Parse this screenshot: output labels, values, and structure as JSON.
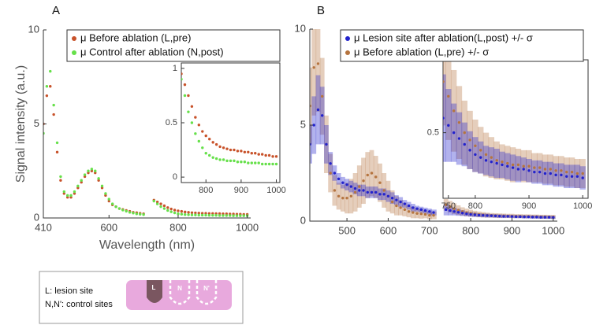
{
  "chart_data": [
    {
      "type": "scatter",
      "label": "A",
      "xlabel": "Wavelength (nm)",
      "ylabel": "Signal intensity (a.u.)",
      "xlim": [
        410,
        1010
      ],
      "ylim": [
        0,
        10
      ],
      "xticks": [
        410,
        600,
        800,
        1000
      ],
      "yticks": [
        0,
        5,
        10
      ],
      "x": [
        410,
        420,
        430,
        440,
        450,
        460,
        470,
        480,
        490,
        500,
        510,
        520,
        530,
        540,
        550,
        560,
        570,
        580,
        590,
        600,
        610,
        620,
        630,
        640,
        650,
        660,
        670,
        680,
        690,
        700,
        730,
        740,
        750,
        760,
        770,
        780,
        790,
        800,
        810,
        820,
        830,
        840,
        850,
        860,
        870,
        880,
        890,
        900,
        910,
        920,
        930,
        940,
        950,
        960,
        970,
        980,
        990,
        1000
      ],
      "series": [
        {
          "name": "μ Before ablation (L,pre)",
          "color": "#c8522a",
          "values": [
            5.0,
            6.5,
            7.0,
            5.5,
            3.5,
            2.0,
            1.3,
            1.1,
            1.1,
            1.3,
            1.6,
            1.9,
            2.2,
            2.4,
            2.5,
            2.4,
            2.0,
            1.6,
            1.2,
            0.9,
            0.7,
            0.6,
            0.5,
            0.45,
            0.4,
            0.35,
            0.3,
            0.28,
            0.25,
            0.22,
            0.95,
            0.85,
            0.75,
            0.65,
            0.55,
            0.48,
            0.42,
            0.38,
            0.35,
            0.32,
            0.3,
            0.28,
            0.27,
            0.26,
            0.25,
            0.25,
            0.24,
            0.24,
            0.23,
            0.23,
            0.22,
            0.22,
            0.21,
            0.21,
            0.2,
            0.2,
            0.19,
            0.19
          ]
        },
        {
          "name": "μ Control after ablation (N,post)",
          "color": "#66e04a",
          "values": [
            4.5,
            7.0,
            7.8,
            6.0,
            4.0,
            2.2,
            1.4,
            1.2,
            1.2,
            1.4,
            1.7,
            2.0,
            2.3,
            2.5,
            2.6,
            2.5,
            2.1,
            1.7,
            1.3,
            1.0,
            0.75,
            0.6,
            0.5,
            0.42,
            0.36,
            0.3,
            0.26,
            0.22,
            0.2,
            0.18,
            0.9,
            0.75,
            0.6,
            0.5,
            0.4,
            0.33,
            0.27,
            0.22,
            0.2,
            0.18,
            0.17,
            0.16,
            0.16,
            0.15,
            0.15,
            0.15,
            0.14,
            0.14,
            0.14,
            0.13,
            0.13,
            0.13,
            0.13,
            0.12,
            0.12,
            0.12,
            0.12,
            0.12
          ]
        }
      ],
      "inset": {
        "xlim": [
          730,
          1010
        ],
        "ylim": [
          -0.05,
          1.05
        ],
        "xticks": [
          800,
          900,
          1000
        ],
        "yticks": [
          0,
          0.5,
          1
        ]
      }
    },
    {
      "type": "scatter",
      "label": "B",
      "xlim": [
        410,
        1010
      ],
      "ylim": [
        0,
        10
      ],
      "xticks": [
        500,
        600,
        700,
        800,
        900,
        1000
      ],
      "yticks": [
        0,
        5,
        10
      ],
      "x": [
        410,
        420,
        430,
        440,
        450,
        460,
        470,
        480,
        490,
        500,
        510,
        520,
        530,
        540,
        550,
        560,
        570,
        580,
        590,
        600,
        610,
        620,
        630,
        640,
        650,
        660,
        670,
        680,
        690,
        700,
        710,
        740,
        750,
        760,
        770,
        780,
        790,
        800,
        810,
        820,
        830,
        840,
        850,
        860,
        870,
        880,
        890,
        900,
        910,
        920,
        930,
        940,
        950,
        960,
        970,
        980,
        990,
        1000
      ],
      "series": [
        {
          "name": "μ Before ablation (L,pre) +/- σ",
          "color": "#b5743f",
          "values": [
            6.0,
            8.0,
            8.2,
            6.5,
            4.0,
            2.5,
            1.6,
            1.3,
            1.2,
            1.2,
            1.3,
            1.5,
            1.8,
            2.1,
            2.4,
            2.5,
            2.3,
            2.0,
            1.6,
            1.3,
            1.0,
            0.8,
            0.7,
            0.6,
            0.5,
            0.45,
            0.4,
            0.38,
            0.35,
            0.3,
            0.3,
            0.85,
            0.75,
            0.65,
            0.57,
            0.5,
            0.45,
            0.41,
            0.38,
            0.35,
            0.33,
            0.31,
            0.3,
            0.29,
            0.28,
            0.28,
            0.27,
            0.27,
            0.26,
            0.26,
            0.25,
            0.25,
            0.24,
            0.24,
            0.23,
            0.23,
            0.22,
            0.22
          ],
          "errors": [
            2.0,
            2.5,
            2.5,
            2.0,
            1.5,
            1.0,
            0.8,
            0.7,
            0.7,
            0.8,
            0.9,
            1.0,
            1.1,
            1.2,
            1.2,
            1.2,
            1.1,
            1.0,
            0.9,
            0.8,
            0.6,
            0.5,
            0.4,
            0.35,
            0.3,
            0.3,
            0.25,
            0.25,
            0.2,
            0.2,
            0.2,
            0.3,
            0.3,
            0.28,
            0.25,
            0.22,
            0.2,
            0.18,
            0.16,
            0.15,
            0.14,
            0.13,
            0.12,
            0.12,
            0.12,
            0.11,
            0.11,
            0.11,
            0.1,
            0.1,
            0.1,
            0.1,
            0.1,
            0.1,
            0.1,
            0.1,
            0.1,
            0.1
          ]
        },
        {
          "name": "μ Lesion site after ablation(L,post) +/- σ",
          "color": "#2222cc",
          "values": [
            4.0,
            5.0,
            5.8,
            5.5,
            4.0,
            3.0,
            2.5,
            2.2,
            2.0,
            1.9,
            1.8,
            1.7,
            1.6,
            1.6,
            1.5,
            1.5,
            1.5,
            1.4,
            1.4,
            1.3,
            1.2,
            1.1,
            1.0,
            0.9,
            0.8,
            0.7,
            0.65,
            0.6,
            0.55,
            0.5,
            0.45,
            0.6,
            0.55,
            0.5,
            0.46,
            0.42,
            0.38,
            0.35,
            0.33,
            0.31,
            0.3,
            0.29,
            0.28,
            0.27,
            0.26,
            0.25,
            0.25,
            0.24,
            0.23,
            0.23,
            0.22,
            0.22,
            0.21,
            0.21,
            0.2,
            0.2,
            0.2,
            0.19
          ],
          "errors": [
            1.0,
            1.5,
            1.8,
            1.5,
            1.0,
            0.6,
            0.4,
            0.3,
            0.3,
            0.3,
            0.3,
            0.3,
            0.3,
            0.3,
            0.3,
            0.3,
            0.3,
            0.3,
            0.3,
            0.3,
            0.3,
            0.25,
            0.25,
            0.2,
            0.2,
            0.2,
            0.15,
            0.15,
            0.15,
            0.15,
            0.15,
            0.3,
            0.25,
            0.2,
            0.18,
            0.15,
            0.13,
            0.12,
            0.11,
            0.1,
            0.1,
            0.1,
            0.09,
            0.09,
            0.09,
            0.09,
            0.08,
            0.08,
            0.08,
            0.08,
            0.08,
            0.08,
            0.08,
            0.08,
            0.08,
            0.08,
            0.08,
            0.08
          ]
        }
      ],
      "legend_order": [
        1,
        0
      ],
      "inset": {
        "xlim": [
          740,
          1010
        ],
        "ylim": [
          0.05,
          1.0
        ],
        "xticks": [
          750,
          800,
          900,
          1000
        ],
        "yticks": [
          0.5
        ]
      }
    }
  ],
  "schematic": {
    "lines": [
      "L: lesion site",
      "N,N': control sites"
    ],
    "sites": [
      "L",
      "N",
      "N'"
    ]
  }
}
